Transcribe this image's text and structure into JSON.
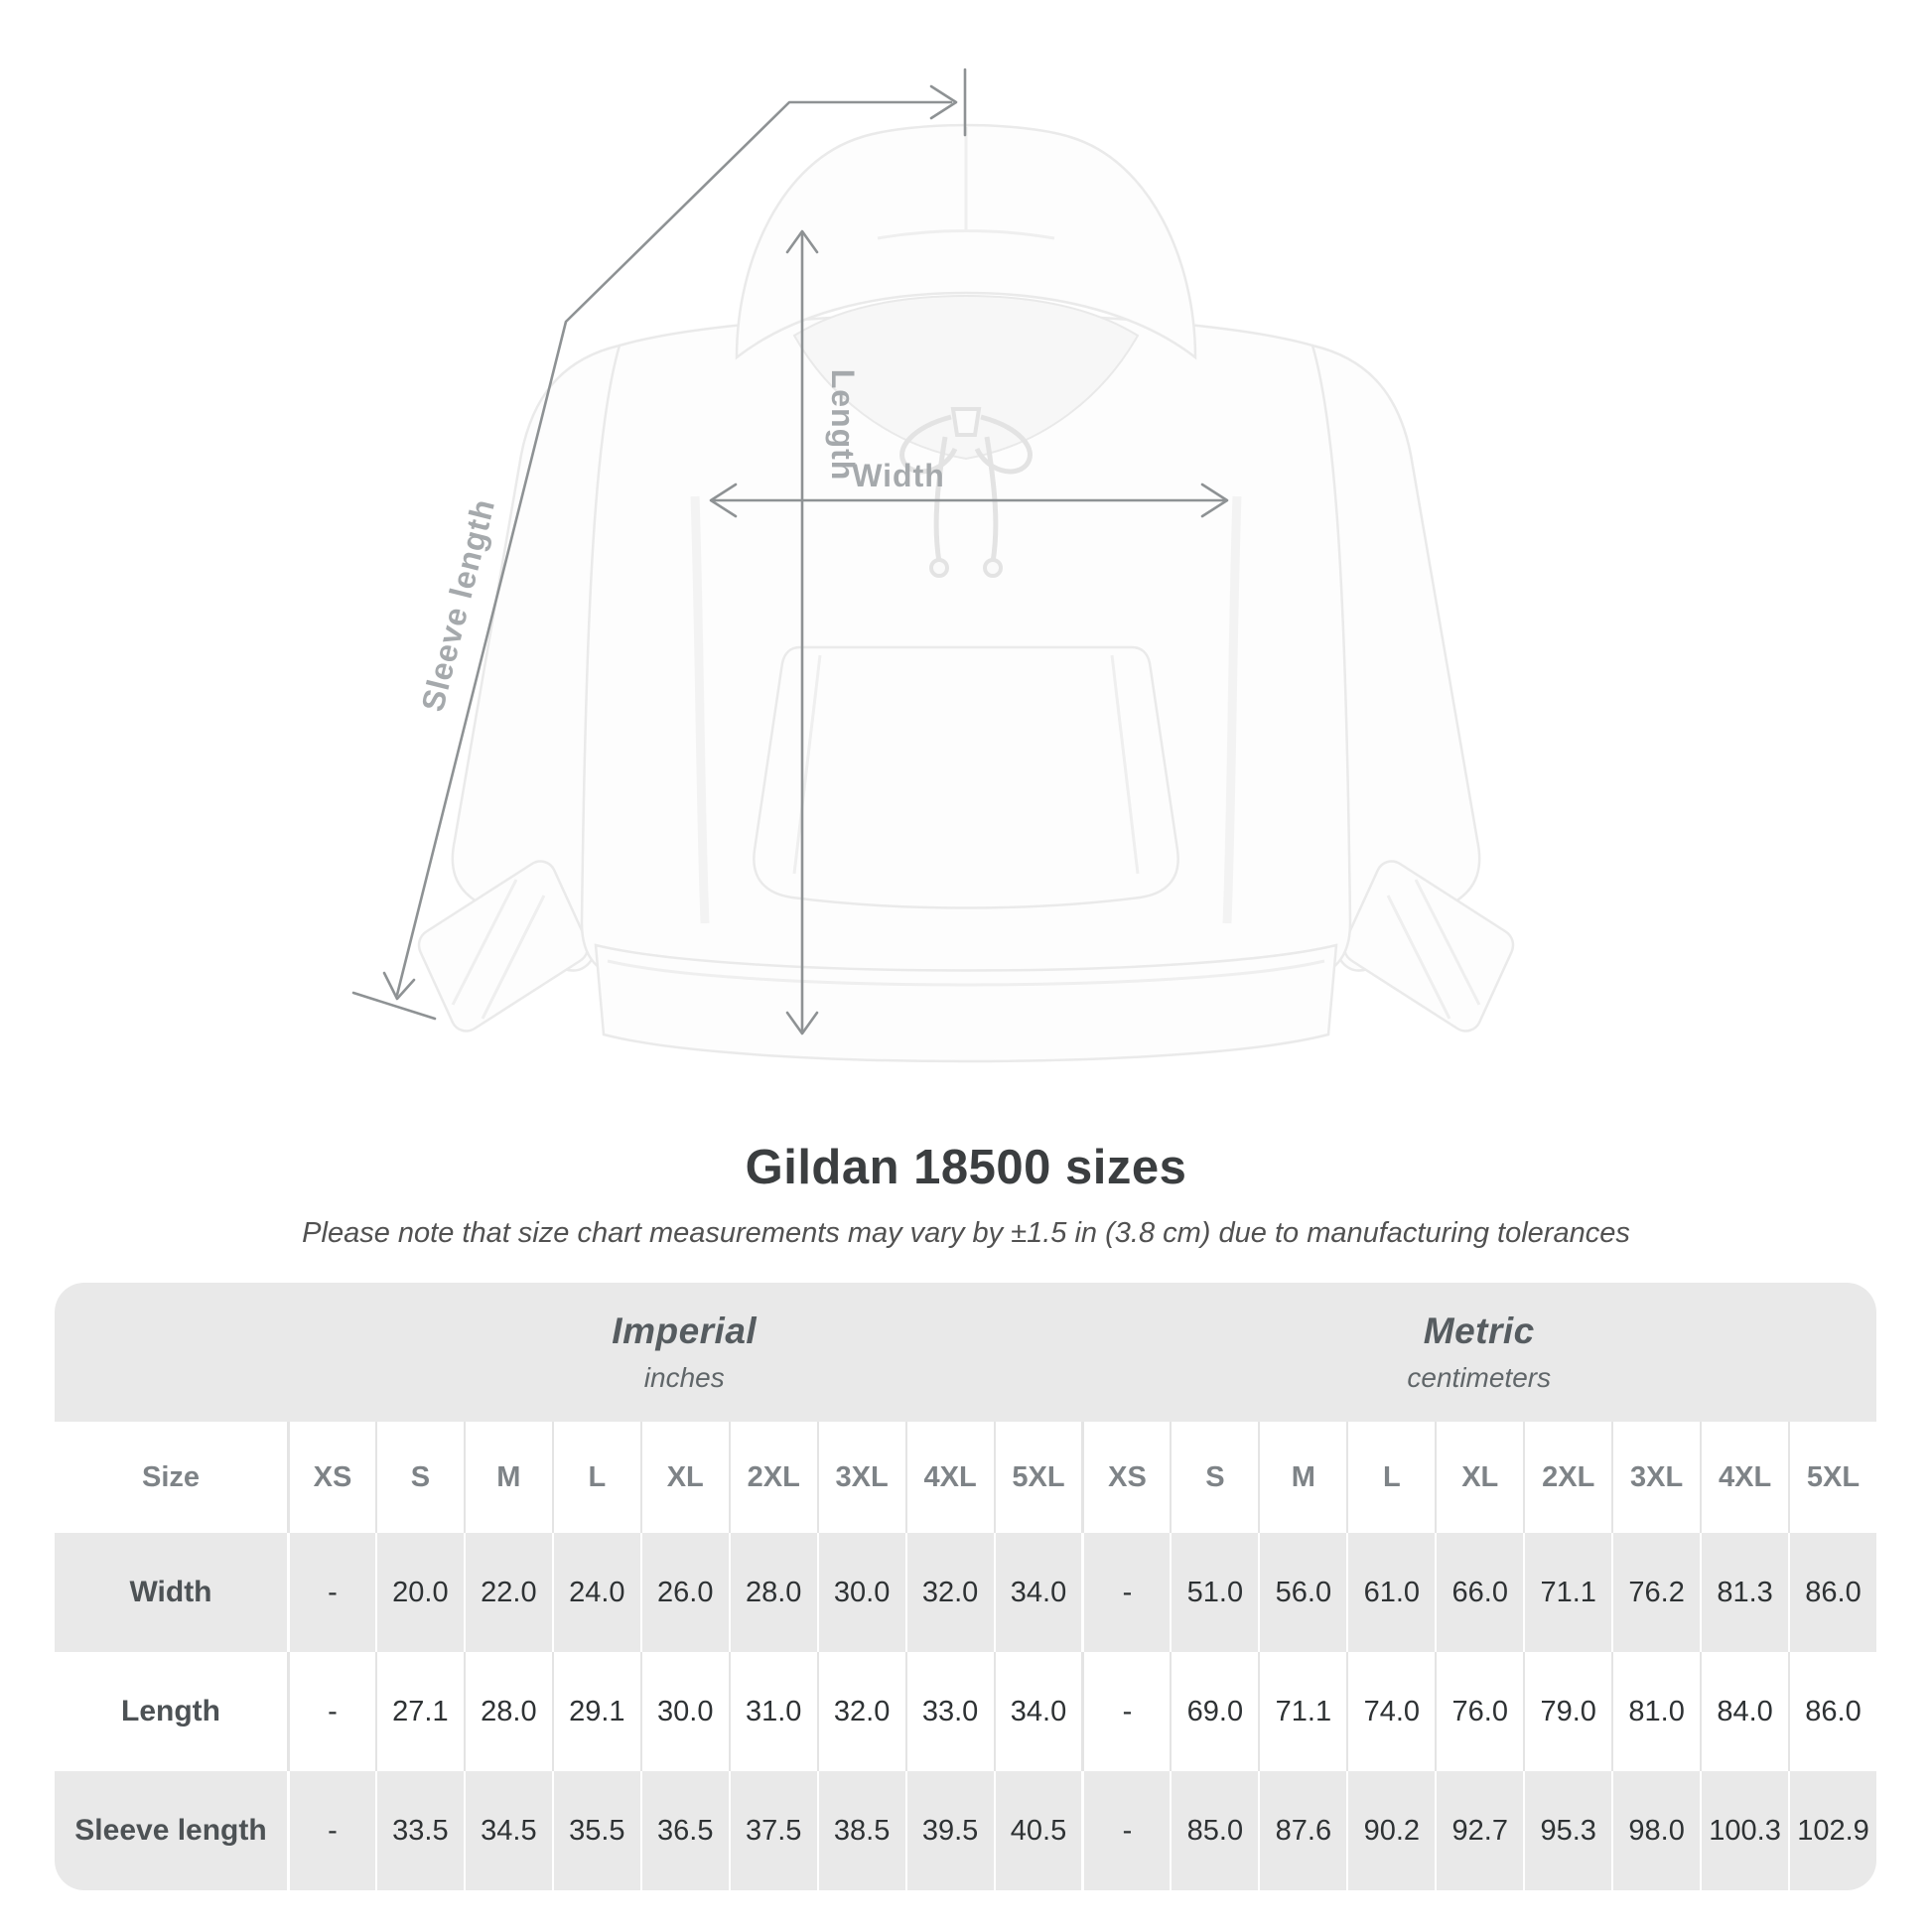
{
  "diagram": {
    "labels": {
      "sleeve": "Sleeve length",
      "length": "Length",
      "width": "Width"
    },
    "line_color": "#8e9294",
    "label_color": "#a5a9ac"
  },
  "heading": {
    "title": "Gildan 18500 sizes",
    "subtitle": "Please note that size chart measurements may vary by ±1.5 in (3.8 cm) due to manufacturing tolerances"
  },
  "table": {
    "size_header": "Size",
    "sizes": [
      "XS",
      "S",
      "M",
      "L",
      "XL",
      "2XL",
      "3XL",
      "4XL",
      "5XL"
    ],
    "unit_groups": [
      {
        "name": "Imperial",
        "unit": "inches"
      },
      {
        "name": "Metric",
        "unit": "centimeters"
      }
    ],
    "rows": [
      {
        "label": "Width",
        "imperial": [
          "-",
          "20.0",
          "22.0",
          "24.0",
          "26.0",
          "28.0",
          "30.0",
          "32.0",
          "34.0"
        ],
        "metric": [
          "-",
          "51.0",
          "56.0",
          "61.0",
          "66.0",
          "71.1",
          "76.2",
          "81.3",
          "86.0"
        ]
      },
      {
        "label": "Length",
        "imperial": [
          "-",
          "27.1",
          "28.0",
          "29.1",
          "30.0",
          "31.0",
          "32.0",
          "33.0",
          "34.0"
        ],
        "metric": [
          "-",
          "69.0",
          "71.1",
          "74.0",
          "76.0",
          "79.0",
          "81.0",
          "84.0",
          "86.0"
        ]
      },
      {
        "label": "Sleeve length",
        "imperial": [
          "-",
          "33.5",
          "34.5",
          "35.5",
          "36.5",
          "37.5",
          "38.5",
          "39.5",
          "40.5"
        ],
        "metric": [
          "-",
          "85.0",
          "87.6",
          "90.2",
          "92.7",
          "95.3",
          "98.0",
          "100.3",
          "102.9"
        ]
      }
    ],
    "colors": {
      "band": "#e9e9e9",
      "row_alt": "#e9e9e9",
      "separator_light": "#e4e4e4"
    }
  }
}
